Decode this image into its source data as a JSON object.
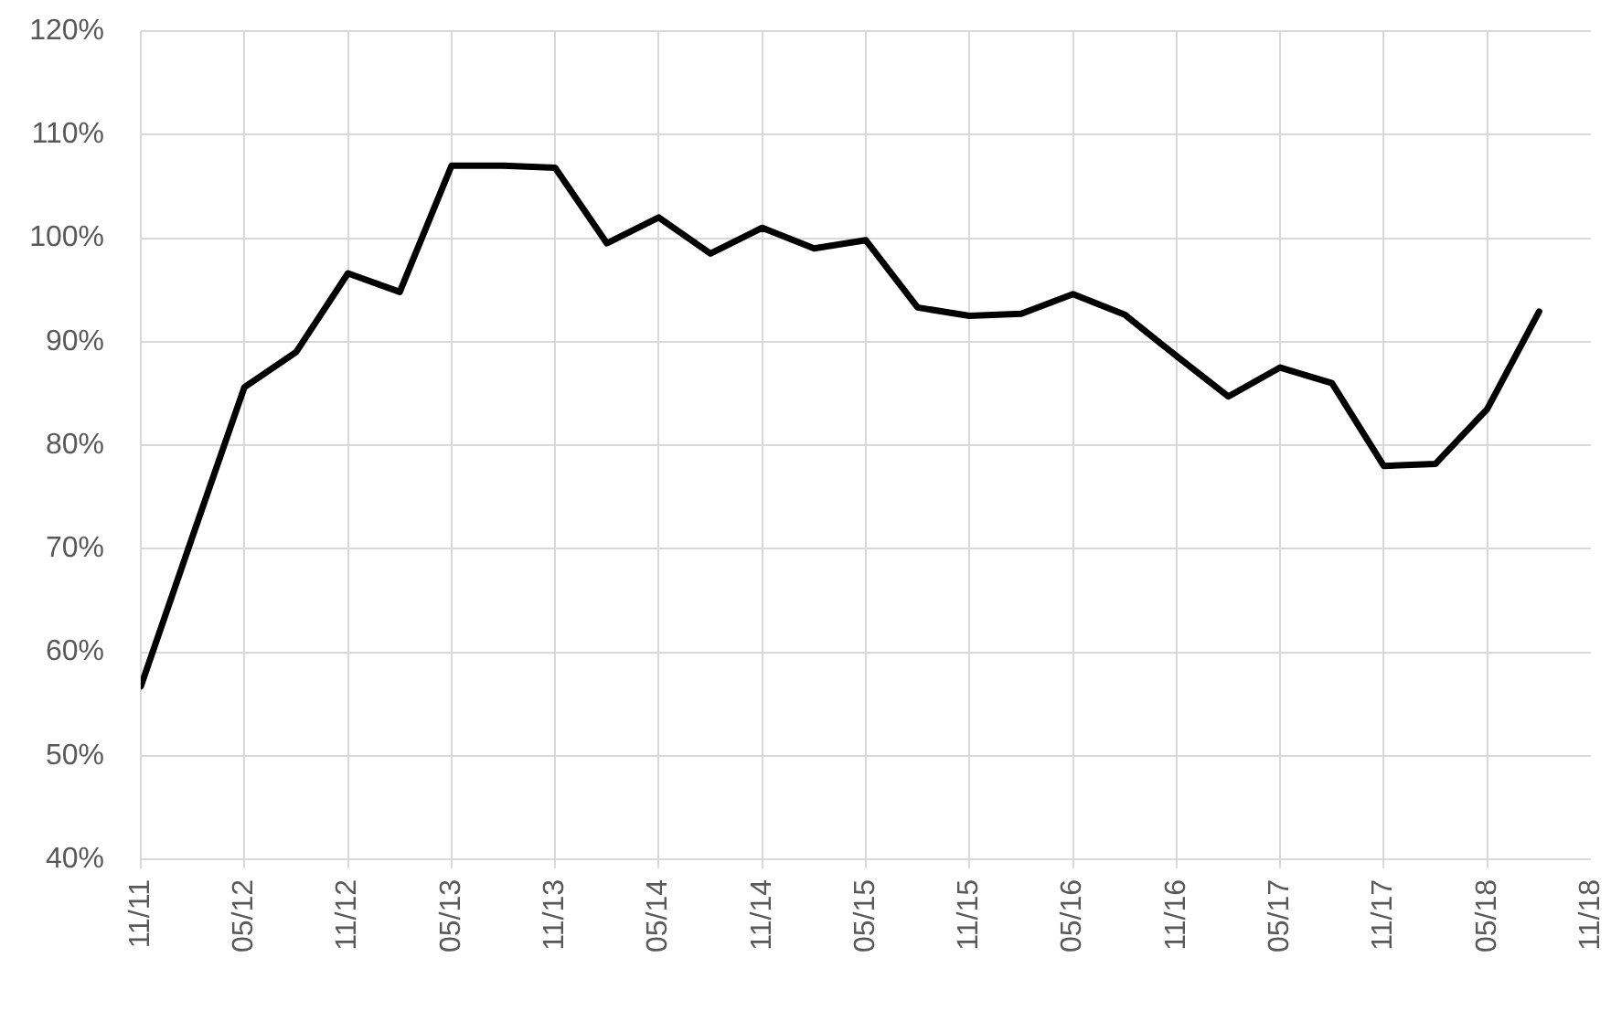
{
  "chart_data": {
    "type": "line",
    "x": [
      "2011-11",
      "2012-02",
      "2012-05",
      "2012-08",
      "2012-11",
      "2013-02",
      "2013-05",
      "2013-08",
      "2013-11",
      "2014-02",
      "2014-05",
      "2014-08",
      "2014-11",
      "2015-02",
      "2015-05",
      "2015-08",
      "2015-11",
      "2016-02",
      "2016-05",
      "2016-08",
      "2016-11",
      "2017-02",
      "2017-05",
      "2017-08",
      "2017-11",
      "2018-02",
      "2018-05",
      "2018-08"
    ],
    "values": [
      56.7,
      71.2,
      85.6,
      89.0,
      96.6,
      94.8,
      107.0,
      107.0,
      106.8,
      99.5,
      102.0,
      98.5,
      101.0,
      99.0,
      99.8,
      93.3,
      92.5,
      92.7,
      94.6,
      92.6,
      88.6,
      84.7,
      87.5,
      86.0,
      78.0,
      78.2,
      83.5,
      92.9
    ],
    "color": "#000000",
    "ylim": [
      40,
      120
    ],
    "yticks": [
      {
        "value": 40,
        "label": "40%"
      },
      {
        "value": 50,
        "label": "50%"
      },
      {
        "value": 60,
        "label": "60%"
      },
      {
        "value": 70,
        "label": "70%"
      },
      {
        "value": 80,
        "label": "80%"
      },
      {
        "value": 90,
        "label": "90%"
      },
      {
        "value": 100,
        "label": "100%"
      },
      {
        "value": 110,
        "label": "110%"
      },
      {
        "value": 120,
        "label": "120%"
      }
    ],
    "xlim": [
      "2011-11",
      "2018-11"
    ],
    "xticks": [
      {
        "value": "2011-11",
        "label": "11/11"
      },
      {
        "value": "2012-05",
        "label": "05/12"
      },
      {
        "value": "2012-11",
        "label": "11/12"
      },
      {
        "value": "2013-05",
        "label": "05/13"
      },
      {
        "value": "2013-11",
        "label": "11/13"
      },
      {
        "value": "2014-05",
        "label": "05/14"
      },
      {
        "value": "2014-11",
        "label": "11/14"
      },
      {
        "value": "2015-05",
        "label": "05/15"
      },
      {
        "value": "2015-11",
        "label": "11/15"
      },
      {
        "value": "2016-05",
        "label": "05/16"
      },
      {
        "value": "2016-11",
        "label": "11/16"
      },
      {
        "value": "2017-05",
        "label": "05/17"
      },
      {
        "value": "2017-11",
        "label": "11/17"
      },
      {
        "value": "2018-05",
        "label": "05/18"
      },
      {
        "value": "2018-11",
        "label": "11/18"
      }
    ],
    "grid": true,
    "marker": "none",
    "line_style": "solid"
  }
}
